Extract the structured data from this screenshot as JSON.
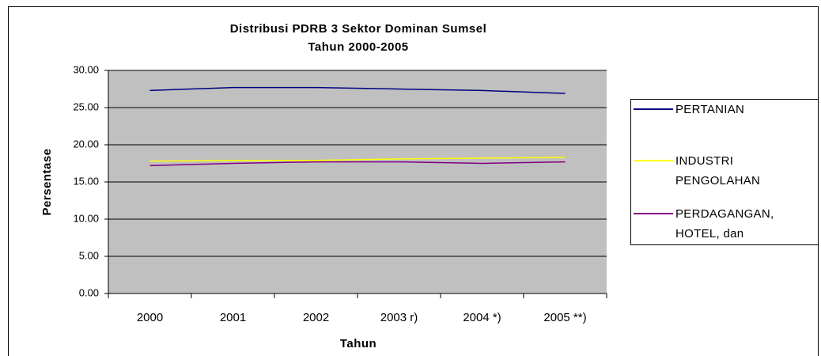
{
  "chart_data": {
    "type": "line",
    "title": [
      "Distribusi PDRB 3 Sektor Dominan Sumsel",
      "Tahun 2000-2005"
    ],
    "x_label": "Tahun",
    "y_label": "Persentase",
    "categories": [
      "2000",
      "2001",
      "2002",
      "2003 r)",
      "2004 *)",
      "2005 **)"
    ],
    "series": [
      {
        "name": "PERTANIAN",
        "color": "#000080",
        "values": [
          27.3,
          27.7,
          27.7,
          27.5,
          27.3,
          26.9
        ]
      },
      {
        "name": "INDUSTRI PENGOLAHAN",
        "color": "#ffff00",
        "values": [
          17.8,
          17.9,
          17.9,
          18.1,
          18.2,
          18.3
        ]
      },
      {
        "name": "PERDAGANGAN, HOTEL, dan RESTORAN",
        "color": "#800080",
        "values": [
          17.2,
          17.5,
          17.7,
          17.7,
          17.5,
          17.7
        ]
      }
    ],
    "ylim": [
      0,
      30
    ],
    "yticks": [
      {
        "value": 0,
        "label": "0.00"
      },
      {
        "value": 5,
        "label": "5.00"
      },
      {
        "value": 10,
        "label": "10.00"
      },
      {
        "value": 15,
        "label": "15.00"
      },
      {
        "value": 20,
        "label": "20.00"
      },
      {
        "value": 25,
        "label": "25.00"
      },
      {
        "value": 30,
        "label": "30.00"
      }
    ],
    "grid": true,
    "plot_background": "#c0c0c0",
    "legend": "right"
  }
}
